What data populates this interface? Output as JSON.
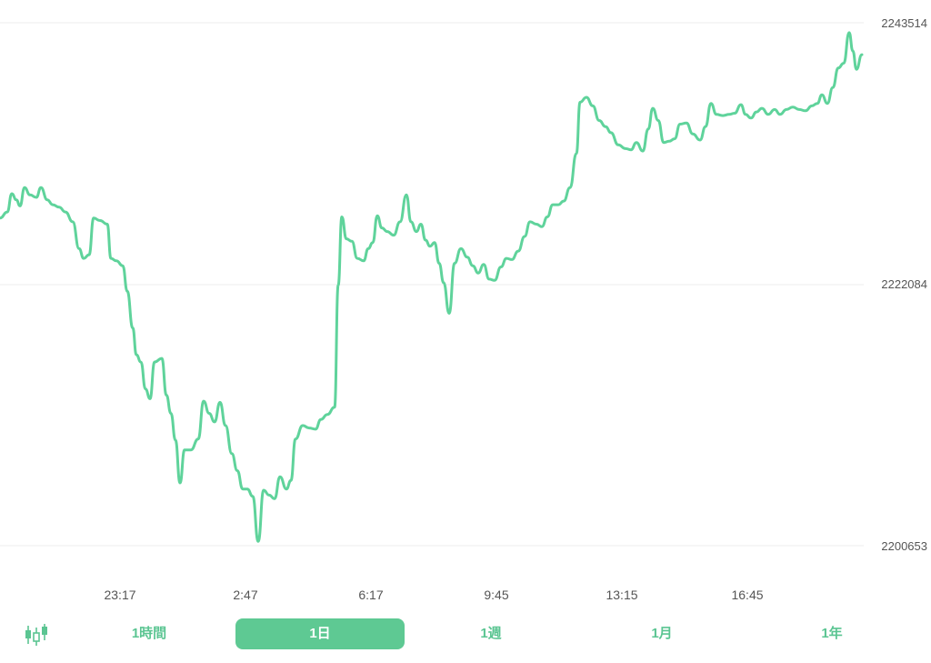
{
  "chart_data": {
    "type": "line",
    "series_color": "#5fd39b",
    "ylim": [
      2200653,
      2243514
    ],
    "y_ticks": [
      "2243514",
      "2222084",
      "2200653"
    ],
    "x_ticks": [
      "23:17",
      "2:47",
      "6:17",
      "9:45",
      "13:15",
      "16:45"
    ],
    "points": [
      [
        0,
        2227500
      ],
      [
        8,
        2228000
      ],
      [
        13,
        2229500
      ],
      [
        18,
        2229000
      ],
      [
        22,
        2228500
      ],
      [
        27,
        2230000
      ],
      [
        33,
        2229400
      ],
      [
        40,
        2229200
      ],
      [
        45,
        2230000
      ],
      [
        52,
        2229000
      ],
      [
        58,
        2228600
      ],
      [
        65,
        2228400
      ],
      [
        72,
        2228000
      ],
      [
        80,
        2227200
      ],
      [
        87,
        2225000
      ],
      [
        92,
        2224200
      ],
      [
        98,
        2224500
      ],
      [
        103,
        2227500
      ],
      [
        110,
        2227300
      ],
      [
        118,
        2227000
      ],
      [
        122,
        2224200
      ],
      [
        128,
        2224000
      ],
      [
        135,
        2223600
      ],
      [
        140,
        2221500
      ],
      [
        146,
        2218500
      ],
      [
        150,
        2216300
      ],
      [
        155,
        2215700
      ],
      [
        160,
        2213500
      ],
      [
        165,
        2212700
      ],
      [
        170,
        2215700
      ],
      [
        178,
        2216000
      ],
      [
        183,
        2213000
      ],
      [
        188,
        2211500
      ],
      [
        193,
        2209300
      ],
      [
        198,
        2205800
      ],
      [
        203,
        2208500
      ],
      [
        210,
        2208500
      ],
      [
        218,
        2209400
      ],
      [
        224,
        2212500
      ],
      [
        230,
        2211500
      ],
      [
        236,
        2210800
      ],
      [
        242,
        2212400
      ],
      [
        248,
        2210500
      ],
      [
        255,
        2208200
      ],
      [
        261,
        2206800
      ],
      [
        267,
        2205300
      ],
      [
        272,
        2205300
      ],
      [
        278,
        2204700
      ],
      [
        284,
        2201000
      ],
      [
        290,
        2205200
      ],
      [
        296,
        2204800
      ],
      [
        302,
        2204500
      ],
      [
        308,
        2206300
      ],
      [
        315,
        2205300
      ],
      [
        320,
        2206000
      ],
      [
        325,
        2209400
      ],
      [
        333,
        2210500
      ],
      [
        340,
        2210300
      ],
      [
        347,
        2210200
      ],
      [
        353,
        2211000
      ],
      [
        360,
        2211400
      ],
      [
        368,
        2212000
      ],
      [
        372,
        2222000
      ],
      [
        376,
        2227600
      ],
      [
        381,
        2225800
      ],
      [
        387,
        2225600
      ],
      [
        393,
        2224200
      ],
      [
        400,
        2224000
      ],
      [
        405,
        2225000
      ],
      [
        410,
        2225500
      ],
      [
        415,
        2227700
      ],
      [
        420,
        2226700
      ],
      [
        426,
        2226400
      ],
      [
        433,
        2226100
      ],
      [
        440,
        2227200
      ],
      [
        447,
        2229400
      ],
      [
        452,
        2227200
      ],
      [
        458,
        2226400
      ],
      [
        463,
        2227000
      ],
      [
        468,
        2225700
      ],
      [
        473,
        2225200
      ],
      [
        478,
        2225500
      ],
      [
        483,
        2223800
      ],
      [
        488,
        2222200
      ],
      [
        494,
        2219700
      ],
      [
        500,
        2223800
      ],
      [
        507,
        2225000
      ],
      [
        514,
        2224300
      ],
      [
        520,
        2223600
      ],
      [
        526,
        2223000
      ],
      [
        532,
        2223700
      ],
      [
        538,
        2222500
      ],
      [
        544,
        2222400
      ],
      [
        551,
        2223500
      ],
      [
        557,
        2224200
      ],
      [
        563,
        2224100
      ],
      [
        570,
        2224800
      ],
      [
        577,
        2226000
      ],
      [
        583,
        2227200
      ],
      [
        590,
        2227000
      ],
      [
        596,
        2226800
      ],
      [
        602,
        2227600
      ],
      [
        608,
        2228600
      ],
      [
        614,
        2228600
      ],
      [
        620,
        2228900
      ],
      [
        627,
        2230000
      ],
      [
        634,
        2232800
      ],
      [
        638,
        2237000
      ],
      [
        645,
        2237400
      ],
      [
        652,
        2236700
      ],
      [
        659,
        2235500
      ],
      [
        666,
        2235000
      ],
      [
        672,
        2234500
      ],
      [
        680,
        2233500
      ],
      [
        688,
        2233200
      ],
      [
        694,
        2233100
      ],
      [
        700,
        2233700
      ],
      [
        707,
        2233000
      ],
      [
        713,
        2234800
      ],
      [
        718,
        2236500
      ],
      [
        724,
        2235500
      ],
      [
        730,
        2233700
      ],
      [
        736,
        2233800
      ],
      [
        742,
        2234000
      ],
      [
        748,
        2235200
      ],
      [
        755,
        2235300
      ],
      [
        762,
        2234400
      ],
      [
        770,
        2233900
      ],
      [
        776,
        2235000
      ],
      [
        782,
        2236900
      ],
      [
        788,
        2236000
      ],
      [
        795,
        2235900
      ],
      [
        802,
        2236000
      ],
      [
        808,
        2236100
      ],
      [
        815,
        2236800
      ],
      [
        820,
        2236000
      ],
      [
        826,
        2235700
      ],
      [
        832,
        2236200
      ],
      [
        838,
        2236500
      ],
      [
        845,
        2236000
      ],
      [
        852,
        2236400
      ],
      [
        858,
        2236000
      ],
      [
        865,
        2236400
      ],
      [
        872,
        2236600
      ],
      [
        879,
        2236400
      ],
      [
        886,
        2236300
      ],
      [
        893,
        2236700
      ],
      [
        899,
        2236900
      ],
      [
        904,
        2237600
      ],
      [
        910,
        2236900
      ],
      [
        916,
        2238200
      ],
      [
        922,
        2239800
      ],
      [
        928,
        2240200
      ],
      [
        934,
        2242700
      ],
      [
        938,
        2241200
      ],
      [
        942,
        2239700
      ],
      [
        948,
        2240900
      ]
    ]
  },
  "y_axis": {
    "top": "2243514",
    "mid": "2222084",
    "bottom": "2200653"
  },
  "x_axis": {
    "t1": "23:17",
    "t2": "2:47",
    "t3": "6:17",
    "t4": "9:45",
    "t5": "13:15",
    "t6": "16:45"
  },
  "range_tabs": {
    "hour": "1時間",
    "day": "1日",
    "week": "1週",
    "month": "1月",
    "year": "1年",
    "active": "1日"
  },
  "icons": {
    "chart_type": "candlestick-icon"
  },
  "colors": {
    "accent": "#5ec993",
    "tab_text": "#5bc592",
    "grid": "#eeeeee"
  }
}
